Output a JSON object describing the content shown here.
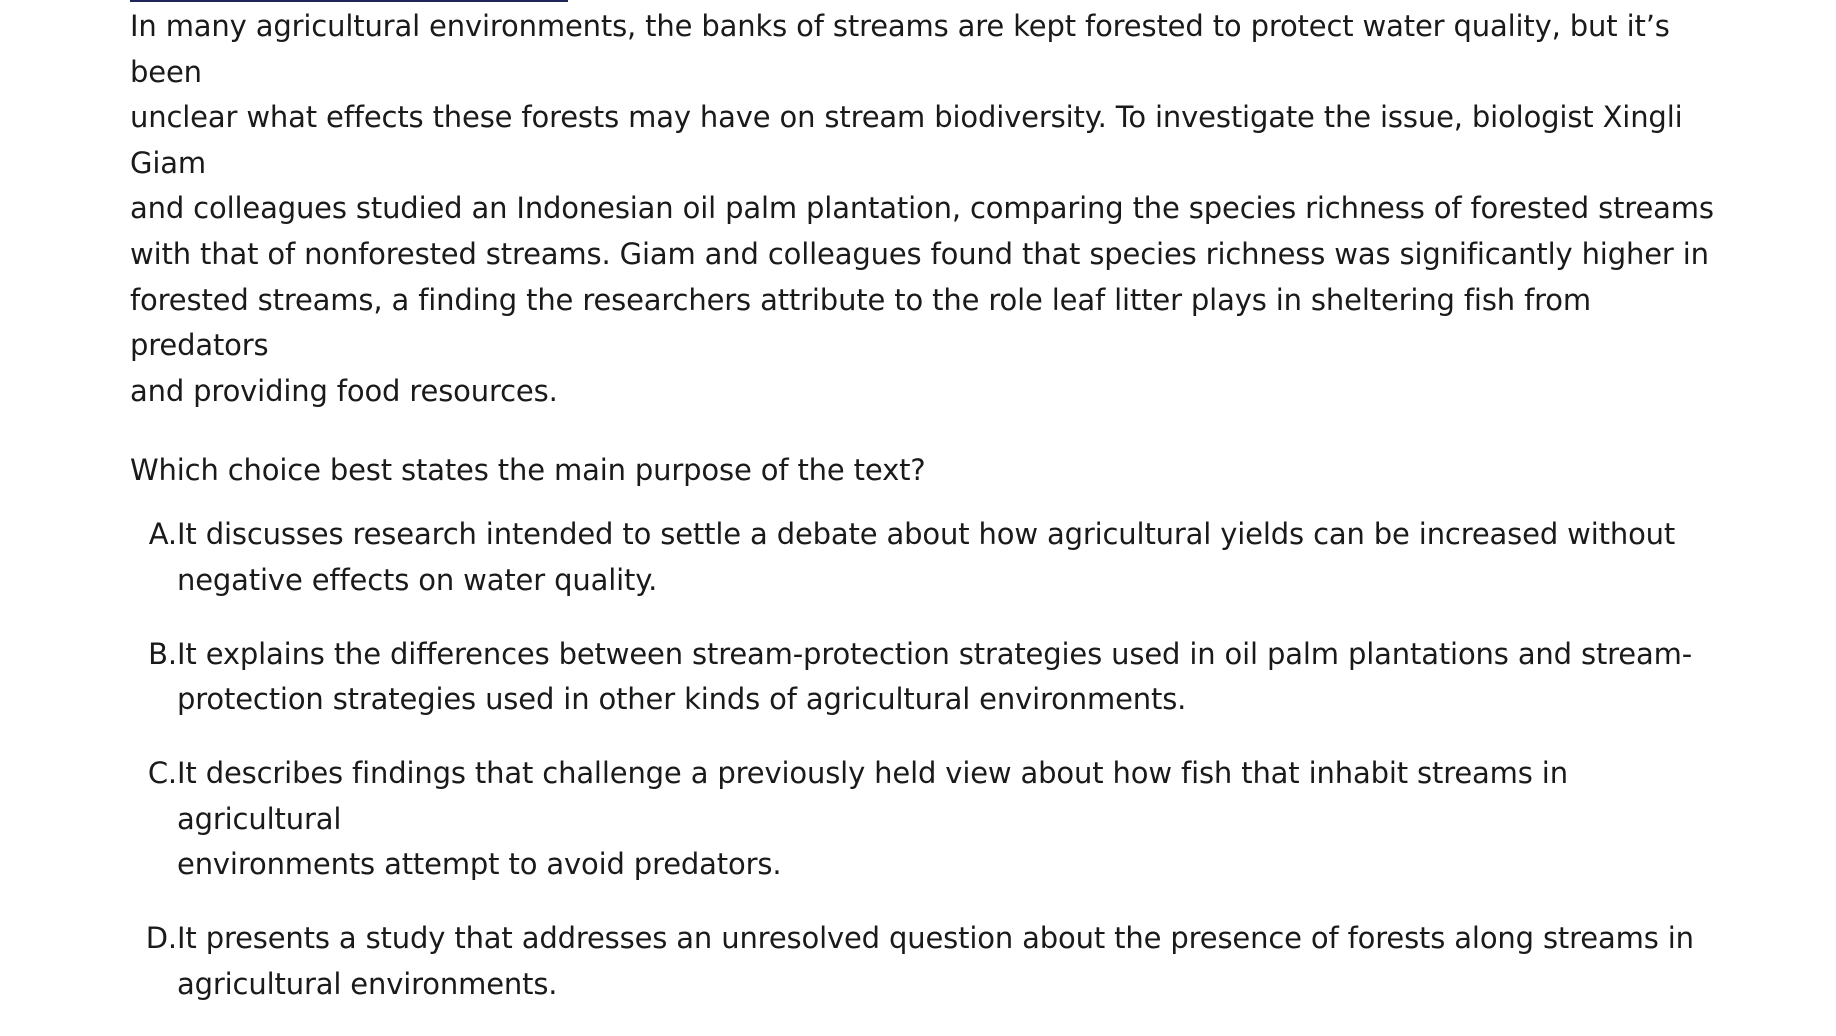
{
  "passage": "In many agricultural environments, the banks of streams are kept forested to protect water quality, but it’s been\nunclear what effects these forests may have on stream biodiversity. To investigate the issue, biologist Xingli Giam\nand colleagues studied an Indonesian oil palm plantation, comparing the species richness of forested streams\nwith that of nonforested streams. Giam and colleagues found that species richness was significantly higher in\nforested streams, a finding the researchers attribute to the role leaf litter plays in sheltering fish from predators\nand providing food resources.",
  "question": "Which choice best states the main purpose of the text?",
  "choices": [
    {
      "letter": "A.",
      "text": "It discusses research intended to settle a debate about how agricultural yields can be increased without\nnegative effects on water quality."
    },
    {
      "letter": "B.",
      "text": "It explains the differences between stream-protection strategies used in oil palm plantations and stream-\nprotection strategies used in other kinds of agricultural environments."
    },
    {
      "letter": "C.",
      "text": "It describes findings that challenge a previously held view about how fish that inhabit streams in agricultural\nenvironments attempt to avoid predators."
    },
    {
      "letter": "D.",
      "text": "It presents a study that addresses an unresolved question about the presence of forests along streams in\nagricultural environments."
    }
  ],
  "colors": {
    "text": "#1a1a1a",
    "rule": "#1f2459",
    "background": "#ffffff"
  }
}
